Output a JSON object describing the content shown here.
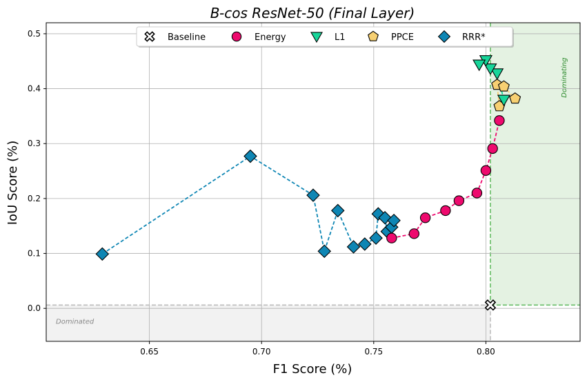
{
  "chart_data": {
    "type": "scatter",
    "title": "B-cos ResNet-50 (Final Layer)",
    "xlabel": "F1 Score (%)",
    "ylabel": "IoU Score (%)",
    "xlim": [
      0.604,
      0.842
    ],
    "ylim": [
      -0.06,
      0.52
    ],
    "xticks": [
      0.65,
      0.7,
      0.75,
      0.8
    ],
    "xtick_labels": [
      "0.65",
      "0.70",
      "0.75",
      "0.80"
    ],
    "yticks": [
      0.0,
      0.1,
      0.2,
      0.3,
      0.4,
      0.5
    ],
    "ytick_labels": [
      "0.0",
      "0.1",
      "0.2",
      "0.3",
      "0.4",
      "0.5"
    ],
    "grid": true,
    "legend_position": "top-center",
    "baseline_point": {
      "x": 0.802,
      "y": 0.006
    },
    "regions": {
      "dominating_label": "Dominating",
      "dominated_label": "Dominated",
      "dominating_color": "#e4f2e2",
      "dominated_color": "#f2f2f2"
    },
    "series": [
      {
        "name": "Baseline",
        "marker": "x-marker",
        "color": "#ffffff",
        "connected": false,
        "points": [
          {
            "x": 0.802,
            "y": 0.006
          }
        ]
      },
      {
        "name": "Energy",
        "marker": "circle",
        "color": "#ee0a6e",
        "connected": true,
        "points": [
          {
            "x": 0.758,
            "y": 0.128
          },
          {
            "x": 0.768,
            "y": 0.136
          },
          {
            "x": 0.773,
            "y": 0.165
          },
          {
            "x": 0.782,
            "y": 0.178
          },
          {
            "x": 0.788,
            "y": 0.196
          },
          {
            "x": 0.796,
            "y": 0.21
          },
          {
            "x": 0.8,
            "y": 0.251
          },
          {
            "x": 0.803,
            "y": 0.291
          },
          {
            "x": 0.806,
            "y": 0.342
          }
        ]
      },
      {
        "name": "L1",
        "marker": "triangle-down",
        "color": "#17d69a",
        "connected": true,
        "points": [
          {
            "x": 0.808,
            "y": 0.38
          },
          {
            "x": 0.805,
            "y": 0.428
          },
          {
            "x": 0.802,
            "y": 0.437
          },
          {
            "x": 0.8,
            "y": 0.452
          },
          {
            "x": 0.797,
            "y": 0.444
          }
        ]
      },
      {
        "name": "PPCE",
        "marker": "pentagon",
        "color": "#f7d072",
        "connected": true,
        "points": [
          {
            "x": 0.806,
            "y": 0.368
          },
          {
            "x": 0.805,
            "y": 0.407
          },
          {
            "x": 0.808,
            "y": 0.404
          },
          {
            "x": 0.813,
            "y": 0.382
          }
        ]
      },
      {
        "name": "RRR*",
        "marker": "diamond",
        "color": "#0e86b4",
        "connected": true,
        "points": [
          {
            "x": 0.629,
            "y": 0.099
          },
          {
            "x": 0.695,
            "y": 0.277
          },
          {
            "x": 0.723,
            "y": 0.206
          },
          {
            "x": 0.728,
            "y": 0.104
          },
          {
            "x": 0.734,
            "y": 0.178
          },
          {
            "x": 0.741,
            "y": 0.112
          },
          {
            "x": 0.746,
            "y": 0.117
          },
          {
            "x": 0.751,
            "y": 0.128
          },
          {
            "x": 0.752,
            "y": 0.172
          },
          {
            "x": 0.755,
            "y": 0.165
          },
          {
            "x": 0.756,
            "y": 0.14
          },
          {
            "x": 0.758,
            "y": 0.148
          },
          {
            "x": 0.759,
            "y": 0.16
          }
        ]
      }
    ]
  }
}
